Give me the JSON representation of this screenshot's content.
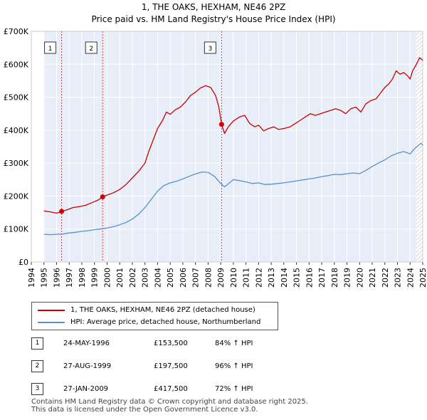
{
  "chart_data": {
    "type": "line",
    "title": "1, THE OAKS, HEXHAM, NE46 2PZ",
    "subtitle": "Price paid vs. HM Land Registry's House Price Index (HPI)",
    "xlim": [
      1994,
      2025
    ],
    "ylim": [
      0,
      700000
    ],
    "xticks": [
      1994,
      1995,
      1996,
      1997,
      1998,
      1999,
      2000,
      2001,
      2002,
      2003,
      2004,
      2005,
      2006,
      2007,
      2008,
      2009,
      2010,
      2011,
      2012,
      2013,
      2014,
      2015,
      2016,
      2017,
      2018,
      2019,
      2020,
      2021,
      2022,
      2023,
      2024,
      2025
    ],
    "yticks": [
      {
        "value": 0,
        "label": "£0"
      },
      {
        "value": 100000,
        "label": "£100K"
      },
      {
        "value": 200000,
        "label": "£200K"
      },
      {
        "value": 300000,
        "label": "£300K"
      },
      {
        "value": 400000,
        "label": "£400K"
      },
      {
        "value": 500000,
        "label": "£500K"
      },
      {
        "value": 600000,
        "label": "£600K"
      },
      {
        "value": 700000,
        "label": "£700K"
      }
    ],
    "data_start": 1995.0,
    "shaded_ranges": [
      [
        1995.0,
        2025.0
      ]
    ],
    "hatched_range": [
      2024.5,
      2025.0
    ],
    "series": [
      {
        "name": "1, THE OAKS, HEXHAM, NE46 2PZ (detached house)",
        "color": "#cc0000",
        "points": [
          [
            1995.0,
            155000
          ],
          [
            1995.5,
            152000
          ],
          [
            1996.0,
            148000
          ],
          [
            1996.4,
            153500
          ],
          [
            1996.8,
            158000
          ],
          [
            1997.3,
            165000
          ],
          [
            1997.8,
            168000
          ],
          [
            1998.3,
            172000
          ],
          [
            1998.8,
            180000
          ],
          [
            1999.3,
            188000
          ],
          [
            1999.65,
            197500
          ],
          [
            2000.0,
            203000
          ],
          [
            2000.5,
            210000
          ],
          [
            2001.0,
            220000
          ],
          [
            2001.5,
            235000
          ],
          [
            2002.0,
            255000
          ],
          [
            2002.5,
            275000
          ],
          [
            2003.0,
            300000
          ],
          [
            2003.3,
            335000
          ],
          [
            2003.7,
            375000
          ],
          [
            2004.0,
            405000
          ],
          [
            2004.4,
            430000
          ],
          [
            2004.7,
            455000
          ],
          [
            2005.0,
            448000
          ],
          [
            2005.4,
            462000
          ],
          [
            2005.8,
            470000
          ],
          [
            2006.2,
            485000
          ],
          [
            2006.6,
            505000
          ],
          [
            2007.0,
            515000
          ],
          [
            2007.4,
            528000
          ],
          [
            2007.8,
            535000
          ],
          [
            2008.2,
            530000
          ],
          [
            2008.6,
            505000
          ],
          [
            2008.85,
            470000
          ],
          [
            2009.07,
            417500
          ],
          [
            2009.3,
            390000
          ],
          [
            2009.6,
            410000
          ],
          [
            2010.0,
            428000
          ],
          [
            2010.5,
            440000
          ],
          [
            2010.9,
            445000
          ],
          [
            2011.3,
            420000
          ],
          [
            2011.7,
            410000
          ],
          [
            2012.0,
            415000
          ],
          [
            2012.4,
            398000
          ],
          [
            2012.8,
            405000
          ],
          [
            2013.2,
            410000
          ],
          [
            2013.6,
            402000
          ],
          [
            2014.0,
            405000
          ],
          [
            2014.5,
            410000
          ],
          [
            2014.9,
            420000
          ],
          [
            2015.3,
            430000
          ],
          [
            2015.7,
            440000
          ],
          [
            2016.1,
            450000
          ],
          [
            2016.5,
            445000
          ],
          [
            2016.9,
            450000
          ],
          [
            2017.3,
            455000
          ],
          [
            2017.7,
            460000
          ],
          [
            2018.1,
            465000
          ],
          [
            2018.5,
            460000
          ],
          [
            2018.9,
            450000
          ],
          [
            2019.3,
            465000
          ],
          [
            2019.7,
            470000
          ],
          [
            2020.1,
            455000
          ],
          [
            2020.5,
            480000
          ],
          [
            2020.9,
            490000
          ],
          [
            2021.3,
            495000
          ],
          [
            2021.7,
            515000
          ],
          [
            2022.0,
            530000
          ],
          [
            2022.3,
            540000
          ],
          [
            2022.6,
            555000
          ],
          [
            2022.9,
            580000
          ],
          [
            2023.2,
            570000
          ],
          [
            2023.5,
            575000
          ],
          [
            2023.8,
            565000
          ],
          [
            2024.0,
            555000
          ],
          [
            2024.2,
            580000
          ],
          [
            2024.5,
            600000
          ],
          [
            2024.75,
            620000
          ],
          [
            2025.0,
            612000
          ]
        ]
      },
      {
        "name": "HPI: Average price, detached house, Northumberland",
        "color": "#5b8fc9",
        "points": [
          [
            1995.0,
            84000
          ],
          [
            1995.5,
            83000
          ],
          [
            1996.0,
            84000
          ],
          [
            1996.5,
            85000
          ],
          [
            1997.0,
            88000
          ],
          [
            1997.5,
            90000
          ],
          [
            1998.0,
            93000
          ],
          [
            1998.5,
            95000
          ],
          [
            1999.0,
            98000
          ],
          [
            1999.5,
            100000
          ],
          [
            2000.0,
            103000
          ],
          [
            2000.5,
            107000
          ],
          [
            2001.0,
            113000
          ],
          [
            2001.5,
            120000
          ],
          [
            2002.0,
            130000
          ],
          [
            2002.5,
            145000
          ],
          [
            2003.0,
            165000
          ],
          [
            2003.5,
            190000
          ],
          [
            2004.0,
            215000
          ],
          [
            2004.5,
            232000
          ],
          [
            2005.0,
            240000
          ],
          [
            2005.5,
            245000
          ],
          [
            2006.0,
            252000
          ],
          [
            2006.5,
            260000
          ],
          [
            2007.0,
            267000
          ],
          [
            2007.5,
            273000
          ],
          [
            2008.0,
            272000
          ],
          [
            2008.5,
            260000
          ],
          [
            2009.0,
            238000
          ],
          [
            2009.3,
            228000
          ],
          [
            2009.7,
            240000
          ],
          [
            2010.0,
            250000
          ],
          [
            2010.5,
            247000
          ],
          [
            2011.0,
            243000
          ],
          [
            2011.5,
            238000
          ],
          [
            2012.0,
            240000
          ],
          [
            2012.5,
            235000
          ],
          [
            2013.0,
            236000
          ],
          [
            2013.5,
            238000
          ],
          [
            2014.0,
            240000
          ],
          [
            2014.5,
            243000
          ],
          [
            2015.0,
            246000
          ],
          [
            2015.5,
            249000
          ],
          [
            2016.0,
            252000
          ],
          [
            2016.5,
            255000
          ],
          [
            2017.0,
            259000
          ],
          [
            2017.5,
            262000
          ],
          [
            2018.0,
            266000
          ],
          [
            2018.5,
            265000
          ],
          [
            2019.0,
            268000
          ],
          [
            2019.5,
            270000
          ],
          [
            2020.0,
            268000
          ],
          [
            2020.5,
            278000
          ],
          [
            2021.0,
            290000
          ],
          [
            2021.5,
            300000
          ],
          [
            2022.0,
            310000
          ],
          [
            2022.5,
            322000
          ],
          [
            2023.0,
            330000
          ],
          [
            2023.5,
            335000
          ],
          [
            2024.0,
            328000
          ],
          [
            2024.3,
            342000
          ],
          [
            2024.6,
            352000
          ],
          [
            2024.85,
            360000
          ],
          [
            2025.0,
            355000
          ]
        ]
      }
    ],
    "sales": [
      {
        "num": "1",
        "x": 1996.4,
        "price": 153500
      },
      {
        "num": "2",
        "x": 1999.65,
        "price": 197500
      },
      {
        "num": "3",
        "x": 2009.07,
        "price": 417500
      }
    ]
  },
  "legend": {
    "property_label": "1, THE OAKS, HEXHAM, NE46 2PZ (detached house)",
    "hpi_label": "HPI: Average price, detached house, Northumberland",
    "property_color": "#cc0000",
    "hpi_color": "#5b8fc9"
  },
  "transactions": [
    {
      "num": "1",
      "date": "24-MAY-1996",
      "price": "£153,500",
      "hpi": "84% ↑ HPI"
    },
    {
      "num": "2",
      "date": "27-AUG-1999",
      "price": "£197,500",
      "hpi": "96% ↑ HPI"
    },
    {
      "num": "3",
      "date": "27-JAN-2009",
      "price": "£417,500",
      "hpi": "72% ↑ HPI"
    }
  ],
  "footer": {
    "line1": "Contains HM Land Registry data © Crown copyright and database right 2025.",
    "line2": "This data is licensed under the Open Government Licence v3.0."
  }
}
